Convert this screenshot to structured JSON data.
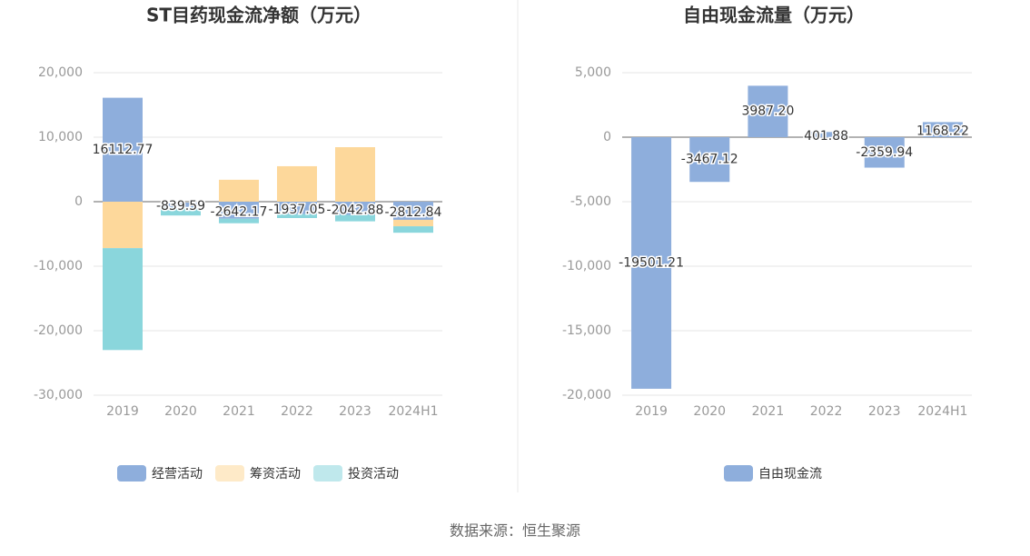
{
  "charts": [
    {
      "chart_data": {
        "type": "stacked_bar",
        "title": "ST目药现金流净额（万元）",
        "categories": [
          "2019",
          "2020",
          "2021",
          "2022",
          "2023",
          "2024H1"
        ],
        "series": [
          {
            "name": "经营活动",
            "color": "#8eaedc",
            "values": [
              16112.77,
              -839.59,
              -2642.17,
              -1937.05,
              -2042.88,
              -2812.84
            ],
            "value_labels": [
              "16112.77",
              "-839.59",
              "-2642.17",
              "-1937.05",
              "-2042.88",
              "-2812.84"
            ]
          },
          {
            "name": "筹资活动",
            "color": "#fdd89b",
            "values": [
              -7200,
              0,
              3400,
              5500,
              8450,
              -1000
            ]
          },
          {
            "name": "投资活动",
            "color": "#8ad6dc",
            "values": [
              -15800,
              -1300,
              -700,
              -600,
              -1000,
              -1000
            ]
          }
        ],
        "ylim": [
          -30000,
          20000
        ],
        "yticks": [
          {
            "value": -30000,
            "label": "-30,000"
          },
          {
            "value": -20000,
            "label": "-20,000"
          },
          {
            "value": -10000,
            "label": "-10,000"
          },
          0,
          {
            "value": 10000,
            "label": "10,000"
          },
          {
            "value": 20000,
            "label": "20,000"
          }
        ],
        "grid": true
      }
    },
    {
      "chart_data": {
        "type": "bar",
        "title": "自由现金流量（万元）",
        "categories": [
          "2019",
          "2020",
          "2021",
          "2022",
          "2023",
          "2024H1"
        ],
        "series": [
          {
            "name": "自由现金流",
            "color": "#8eaedc",
            "values": [
              -19501.21,
              -3467.12,
              3987.2,
              401.88,
              -2359.94,
              1168.22
            ],
            "value_labels": [
              "-19501.21",
              "-3467.12",
              "3987.20",
              "401.88",
              "-2359.94",
              "1168.22"
            ]
          }
        ],
        "ylim": [
          -20000,
          5000
        ],
        "yticks": [
          {
            "value": -20000,
            "label": "-20,000"
          },
          {
            "value": -15000,
            "label": "-15,000"
          },
          {
            "value": -10000,
            "label": "-10,000"
          },
          {
            "value": -5000,
            "label": "-5,000"
          },
          0,
          {
            "value": 5000,
            "label": "5,000"
          }
        ],
        "grid": true
      }
    }
  ],
  "source": "数据来源：恒生聚源"
}
